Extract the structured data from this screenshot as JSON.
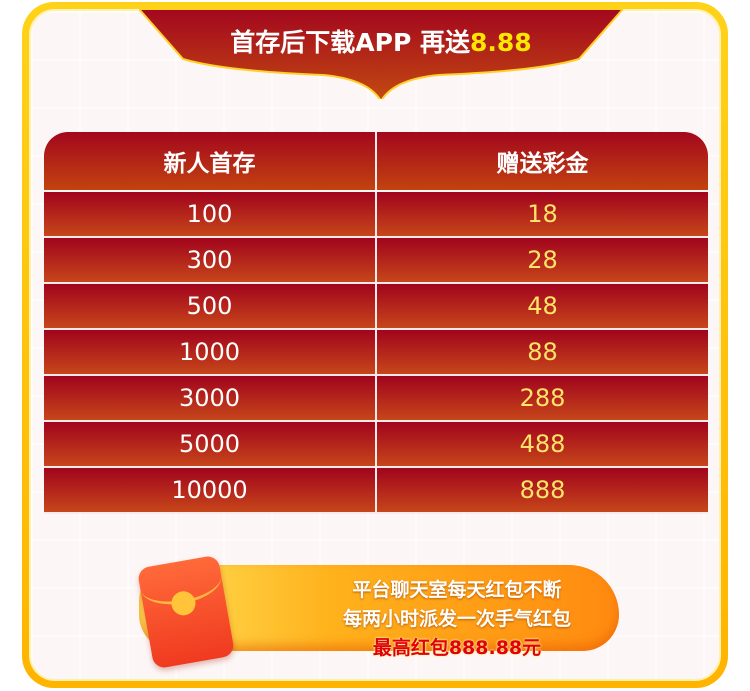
{
  "banner": {
    "title_prefix": "首存后下载APP 再送",
    "title_amount": "8.88"
  },
  "table": {
    "headers": [
      "新人首存",
      "赠送彩金"
    ],
    "rows": [
      [
        "100",
        "18"
      ],
      [
        "300",
        "28"
      ],
      [
        "500",
        "48"
      ],
      [
        "1000",
        "88"
      ],
      [
        "3000",
        "288"
      ],
      [
        "5000",
        "488"
      ],
      [
        "10000",
        "888"
      ]
    ]
  },
  "promo": {
    "icon": "red-envelope-icon",
    "line1": "平台聊天室每天红包不断",
    "line2": "每两小时派发一次手气红包",
    "line3": "最高红包888.88元"
  },
  "colors": {
    "frame": "#ffc20e",
    "table_red": "#a3071e",
    "amount_yellow": "#ffe36a"
  }
}
